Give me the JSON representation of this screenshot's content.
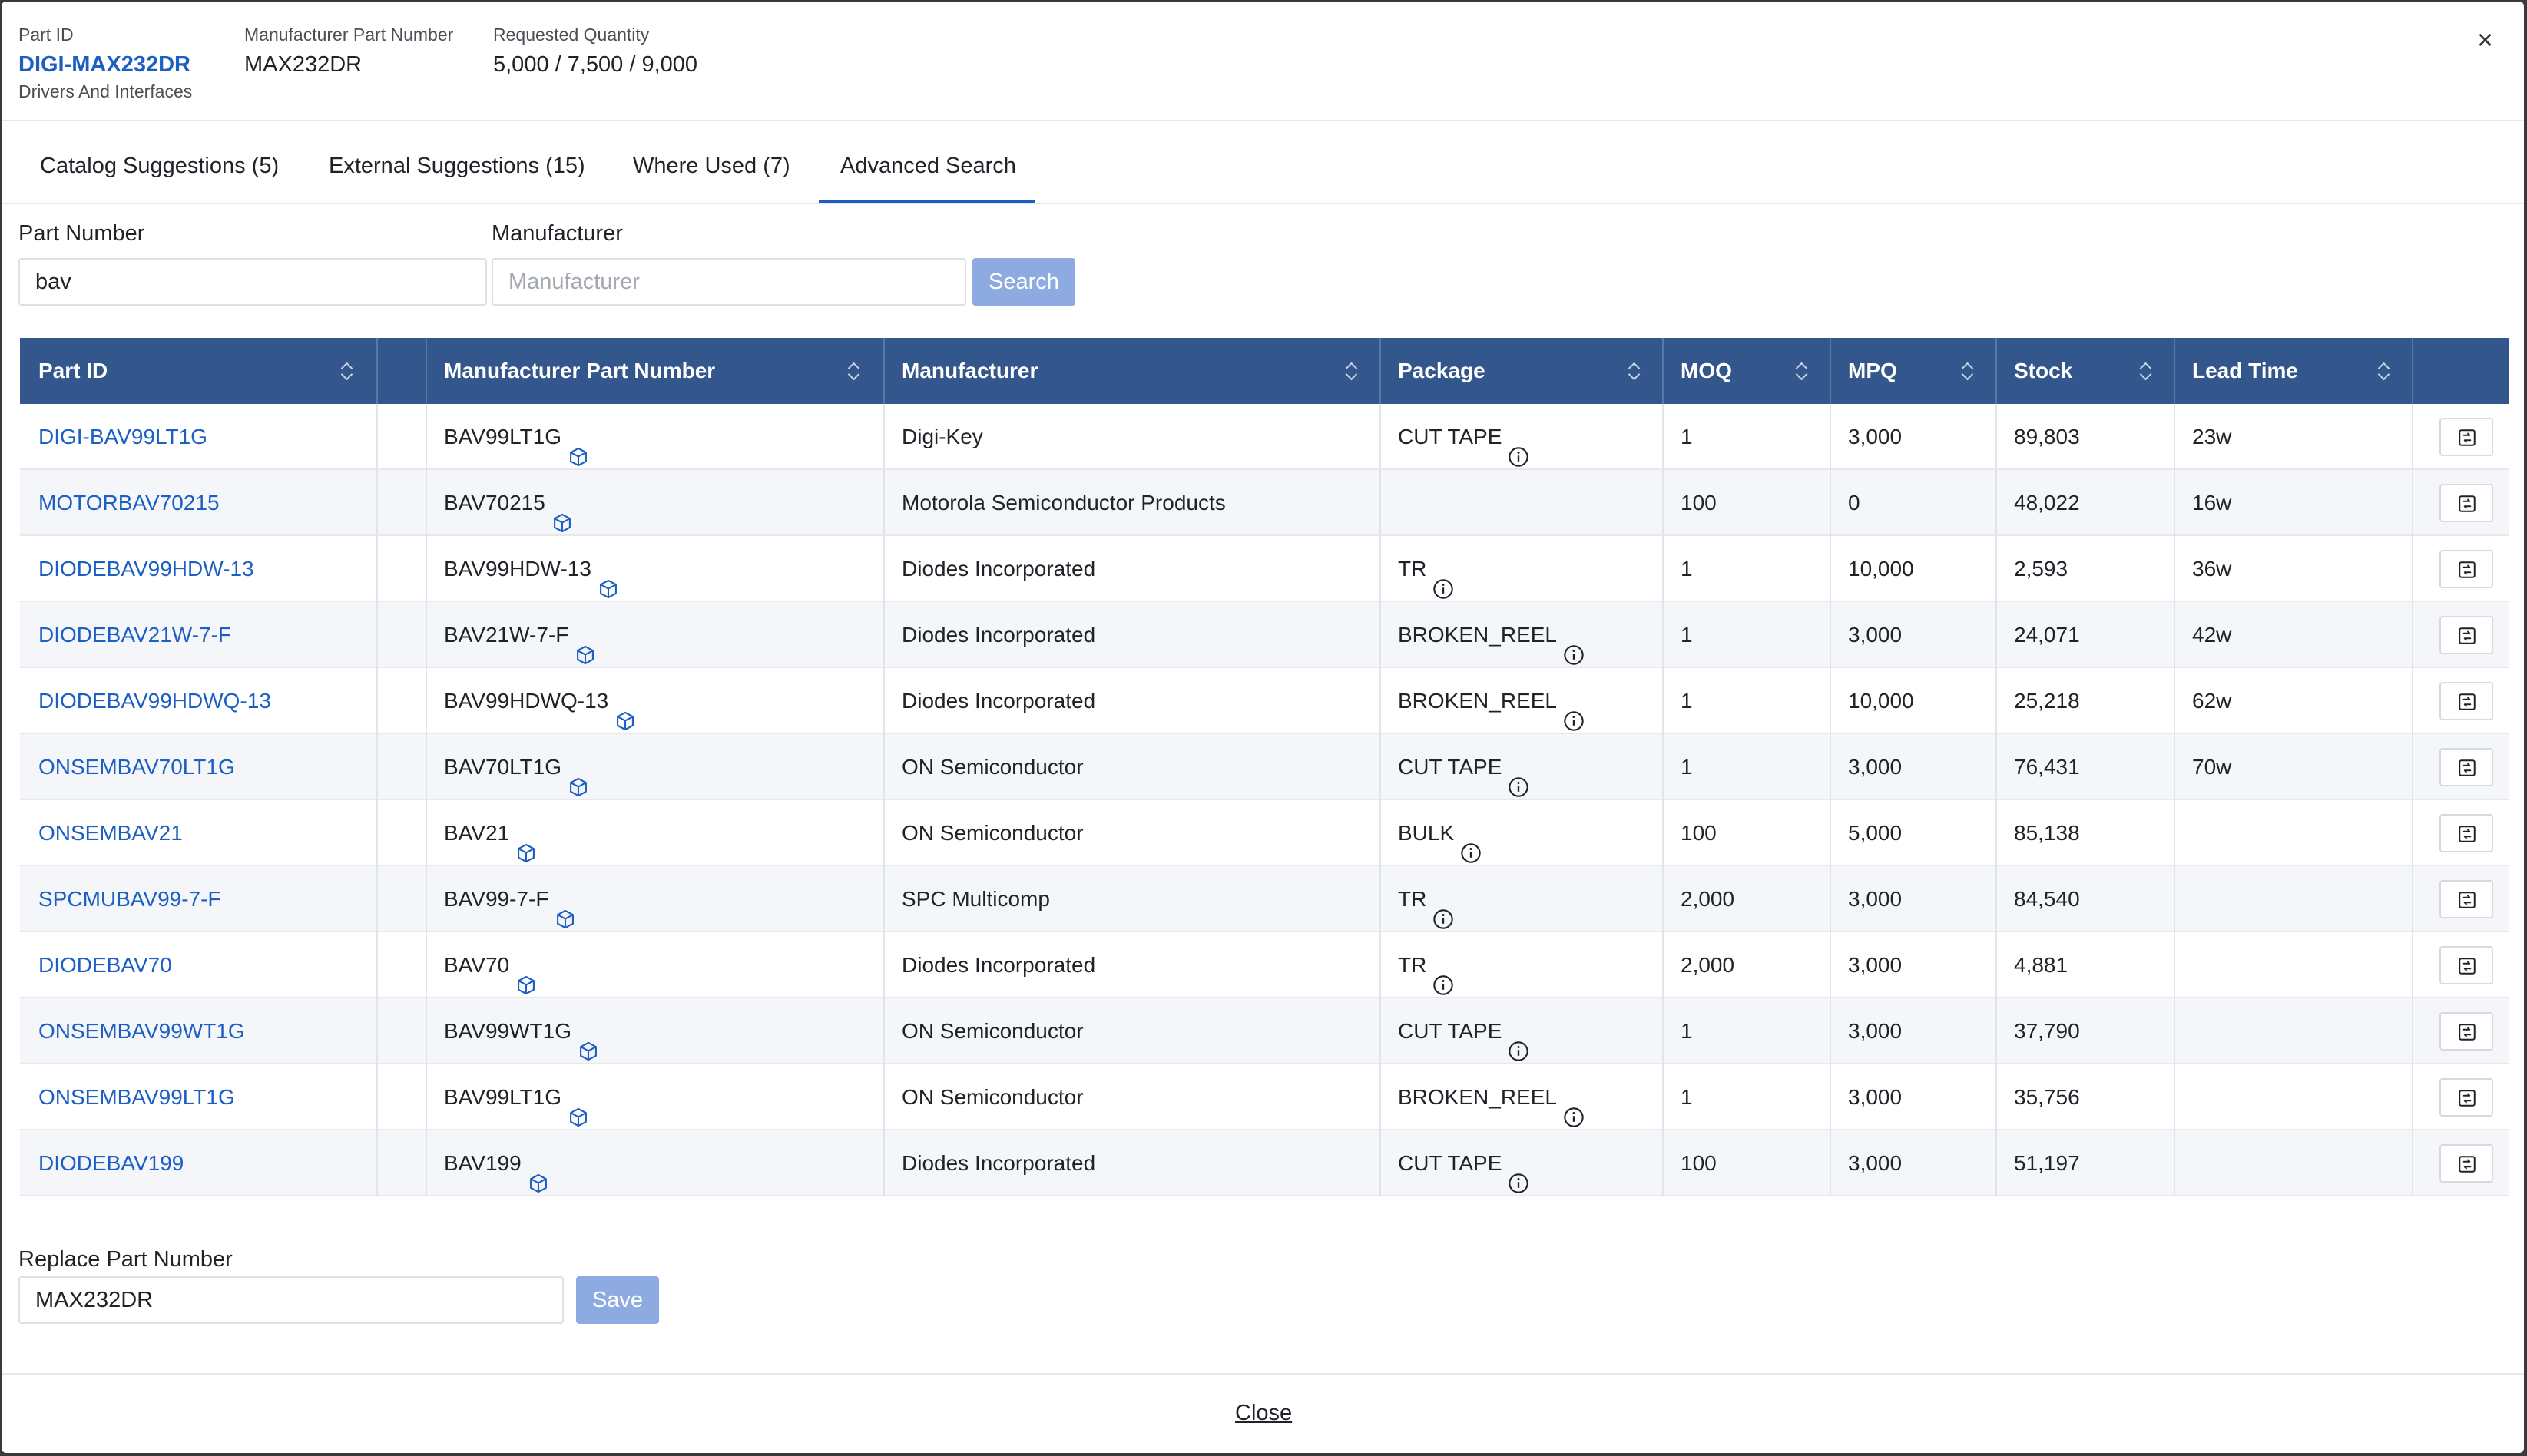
{
  "header": {
    "part_id_label": "Part ID",
    "part_id": "DIGI-MAX232DR",
    "category": "Drivers And Interfaces",
    "mpn_label": "Manufacturer Part Number",
    "mpn": "MAX232DR",
    "qty_label": "Requested Quantity",
    "qty": "5,000 / 7,500 / 9,000",
    "close_glyph": "×"
  },
  "tabs": [
    {
      "label": "Catalog Suggestions (5)"
    },
    {
      "label": "External Suggestions (15)"
    },
    {
      "label": "Where Used (7)"
    },
    {
      "label": "Advanced Search",
      "active": true
    }
  ],
  "search": {
    "part_number_label": "Part Number",
    "part_number_value": "bav",
    "manufacturer_label": "Manufacturer",
    "manufacturer_placeholder": "Manufacturer",
    "search_button": "Search"
  },
  "table": {
    "columns": [
      "Part ID",
      "",
      "Manufacturer Part Number",
      "Manufacturer",
      "Package",
      "MOQ",
      "MPQ",
      "Stock",
      "Lead Time",
      ""
    ],
    "rows": [
      {
        "part_id": "DIGI-BAV99LT1G",
        "mpn": "BAV99LT1G",
        "manufacturer": "Digi-Key",
        "package": "CUT TAPE",
        "moq": "1",
        "mpq": "3,000",
        "stock": "89,803",
        "lead": "23w"
      },
      {
        "part_id": "MOTORBAV70215",
        "mpn": "BAV70215",
        "manufacturer": "Motorola Semiconductor Products",
        "package": "",
        "moq": "100",
        "mpq": "0",
        "stock": "48,022",
        "lead": "16w"
      },
      {
        "part_id": "DIODEBAV99HDW-13",
        "mpn": "BAV99HDW-13",
        "manufacturer": "Diodes Incorporated",
        "package": "TR",
        "moq": "1",
        "mpq": "10,000",
        "stock": "2,593",
        "lead": "36w"
      },
      {
        "part_id": "DIODEBAV21W-7-F",
        "mpn": "BAV21W-7-F",
        "manufacturer": "Diodes Incorporated",
        "package": "BROKEN_REEL",
        "moq": "1",
        "mpq": "3,000",
        "stock": "24,071",
        "lead": "42w"
      },
      {
        "part_id": "DIODEBAV99HDWQ-13",
        "mpn": "BAV99HDWQ-13",
        "manufacturer": "Diodes Incorporated",
        "package": "BROKEN_REEL",
        "moq": "1",
        "mpq": "10,000",
        "stock": "25,218",
        "lead": "62w"
      },
      {
        "part_id": "ONSEMBAV70LT1G",
        "mpn": "BAV70LT1G",
        "manufacturer": "ON Semiconductor",
        "package": "CUT TAPE",
        "moq": "1",
        "mpq": "3,000",
        "stock": "76,431",
        "lead": "70w"
      },
      {
        "part_id": "ONSEMBAV21",
        "mpn": "BAV21",
        "manufacturer": "ON Semiconductor",
        "package": "BULK",
        "moq": "100",
        "mpq": "5,000",
        "stock": "85,138",
        "lead": ""
      },
      {
        "part_id": "SPCMUBAV99-7-F",
        "mpn": "BAV99-7-F",
        "manufacturer": "SPC Multicomp",
        "package": "TR",
        "moq": "2,000",
        "mpq": "3,000",
        "stock": "84,540",
        "lead": ""
      },
      {
        "part_id": "DIODEBAV70",
        "mpn": "BAV70",
        "manufacturer": "Diodes Incorporated",
        "package": "TR",
        "moq": "2,000",
        "mpq": "3,000",
        "stock": "4,881",
        "lead": ""
      },
      {
        "part_id": "ONSEMBAV99WT1G",
        "mpn": "BAV99WT1G",
        "manufacturer": "ON Semiconductor",
        "package": "CUT TAPE",
        "moq": "1",
        "mpq": "3,000",
        "stock": "37,790",
        "lead": ""
      },
      {
        "part_id": "ONSEMBAV99LT1G",
        "mpn": "BAV99LT1G",
        "manufacturer": "ON Semiconductor",
        "package": "BROKEN_REEL",
        "moq": "1",
        "mpq": "3,000",
        "stock": "35,756",
        "lead": ""
      },
      {
        "part_id": "DIODEBAV199",
        "mpn": "BAV199",
        "manufacturer": "Diodes Incorporated",
        "package": "CUT TAPE",
        "moq": "100",
        "mpq": "3,000",
        "stock": "51,197",
        "lead": ""
      }
    ]
  },
  "replace": {
    "label": "Replace Part Number",
    "value": "MAX232DR",
    "save_button": "Save"
  },
  "footer": {
    "close_label": "Close"
  },
  "colors": {
    "accent": "#1c5fc4",
    "table_header": "#33568c",
    "button_disabled": "#8dabe0"
  },
  "icons": {
    "mpn_icon": "cube-icon",
    "package_icon": "info-icon",
    "row_action_icon": "replace-icon",
    "sort_icon": "sort-icon"
  }
}
